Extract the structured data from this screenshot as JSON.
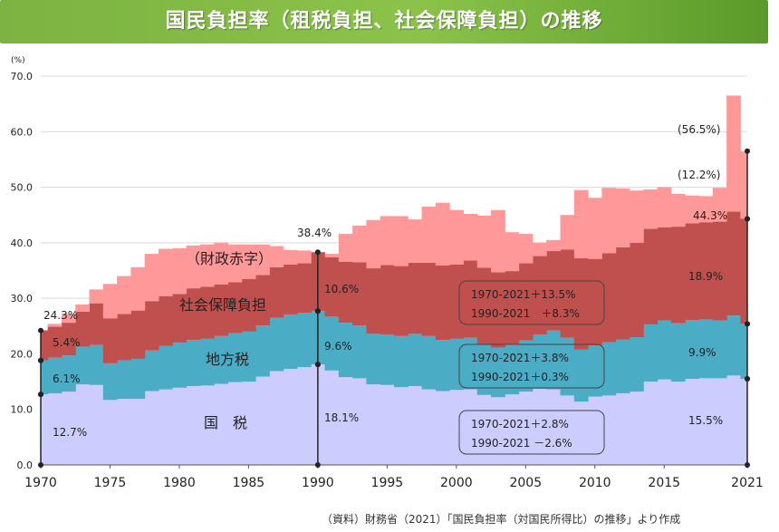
{
  "title": "国民負担率（租税負担、社会保障負担）の推移",
  "source_note": "（資料）財務省（2021）「国民負担率（対国民所得比）の推移」より作成",
  "chart_data": {
    "type": "area",
    "unit_label": "(%)",
    "ylim": [
      0,
      70
    ],
    "yticks": [
      "0.0",
      "10.0",
      "20.0",
      "30.0",
      "40.0",
      "50.0",
      "60.0",
      "70.0"
    ],
    "xticks": [
      1970,
      1975,
      1980,
      1985,
      1990,
      1995,
      2000,
      2005,
      2010,
      2015,
      2021
    ],
    "x": [
      1970,
      1971,
      1972,
      1973,
      1974,
      1975,
      1976,
      1977,
      1978,
      1979,
      1980,
      1981,
      1982,
      1983,
      1984,
      1985,
      1986,
      1987,
      1988,
      1989,
      1990,
      1991,
      1992,
      1993,
      1994,
      1995,
      1996,
      1997,
      1998,
      1999,
      2000,
      2001,
      2002,
      2003,
      2004,
      2005,
      2006,
      2007,
      2008,
      2009,
      2010,
      2011,
      2012,
      2013,
      2014,
      2015,
      2016,
      2017,
      2018,
      2019,
      2020,
      2021
    ],
    "series": [
      {
        "name": "国　税",
        "color": "#ccccff",
        "values": [
          12.7,
          12.9,
          13.2,
          14.5,
          14.4,
          11.7,
          11.9,
          11.9,
          13.3,
          13.6,
          13.9,
          14.2,
          14.3,
          14.6,
          14.9,
          15.0,
          15.9,
          16.9,
          17.3,
          17.6,
          18.1,
          17.0,
          15.8,
          15.6,
          14.5,
          14.4,
          14.0,
          14.2,
          13.6,
          13.3,
          13.5,
          13.6,
          12.6,
          12.2,
          12.7,
          13.2,
          13.7,
          13.6,
          12.5,
          11.4,
          12.3,
          12.5,
          12.9,
          13.2,
          15.0,
          15.4,
          15.0,
          15.5,
          15.6,
          15.6,
          16.1,
          15.5
        ]
      },
      {
        "name": "地方税",
        "color": "#4bacc6",
        "values": [
          6.1,
          6.4,
          6.5,
          6.8,
          7.2,
          6.6,
          6.9,
          7.2,
          7.3,
          7.8,
          8.1,
          8.3,
          8.4,
          8.6,
          8.8,
          9.0,
          9.2,
          9.6,
          9.8,
          9.8,
          9.6,
          9.7,
          9.8,
          9.5,
          9.1,
          9.1,
          9.2,
          9.4,
          9.6,
          9.2,
          9.2,
          9.3,
          9.1,
          8.9,
          8.9,
          9.2,
          9.8,
          10.6,
          10.4,
          9.4,
          9.2,
          9.6,
          9.7,
          9.8,
          10.3,
          10.6,
          10.5,
          10.6,
          10.6,
          10.4,
          10.8,
          9.9
        ]
      },
      {
        "name": "社会保障負担",
        "color": "#c0504d",
        "values": [
          5.4,
          5.6,
          5.9,
          6.3,
          7.5,
          8.1,
          8.4,
          8.7,
          8.9,
          9.0,
          8.8,
          9.3,
          9.4,
          9.3,
          9.2,
          9.5,
          9.1,
          9.1,
          9.0,
          8.9,
          10.6,
          10.7,
          11.0,
          11.4,
          11.8,
          12.5,
          12.6,
          12.8,
          13.2,
          13.4,
          13.4,
          13.9,
          13.8,
          13.6,
          13.3,
          13.9,
          14.1,
          14.3,
          15.9,
          16.4,
          15.6,
          16.0,
          16.6,
          17.0,
          17.2,
          16.8,
          17.4,
          17.4,
          17.5,
          17.8,
          18.7,
          18.9
        ]
      },
      {
        "name": "財政赤字",
        "color": "#ff9999",
        "values": [
          0.1,
          0.5,
          1.6,
          1.3,
          2.5,
          6.2,
          6.8,
          7.8,
          8.5,
          8.5,
          8.2,
          7.7,
          7.6,
          7.5,
          6.8,
          6.2,
          5.5,
          3.8,
          2.6,
          2.3,
          0.0,
          0.6,
          5.0,
          6.6,
          8.7,
          8.8,
          9.0,
          7.8,
          10.1,
          11.3,
          9.8,
          8.4,
          9.4,
          11.2,
          7.0,
          5.3,
          2.4,
          2.0,
          6.2,
          12.3,
          11.0,
          11.8,
          10.6,
          9.4,
          7.1,
          7.2,
          5.9,
          5.0,
          4.7,
          6.1,
          20.9,
          12.2
        ]
      }
    ],
    "bracket_labels": {
      "y1970_total": "24.3%",
      "y1970_ss": "5.4%",
      "y1970_local": "6.1%",
      "y1970_national": "12.7%",
      "y1990_total": "38.4%",
      "y1990_ss": "10.6%",
      "y1990_local": "9.6%",
      "y1990_national": "18.1%",
      "y2021_total_deficit": "(56.5%)",
      "y2021_deficit": "(12.2%)",
      "y2021_total": "44.3%",
      "y2021_ss": "18.9%",
      "y2021_local": "9.9%",
      "y2021_national": "15.5%"
    },
    "area_labels": {
      "national": "国　税",
      "local": "地方税",
      "ss": "社会保障負担",
      "deficit": "（財政赤字）"
    },
    "change_boxes": [
      {
        "line1": "1970-2021＋13.5%",
        "line2": "1990-2021　＋8.3%"
      },
      {
        "line1": "1970-2021＋3.8%",
        "line2": "1990-2021＋0.3%"
      },
      {
        "line1": "1970-2021＋2.8%",
        "line2": "1990-2021 －2.6%"
      }
    ]
  }
}
